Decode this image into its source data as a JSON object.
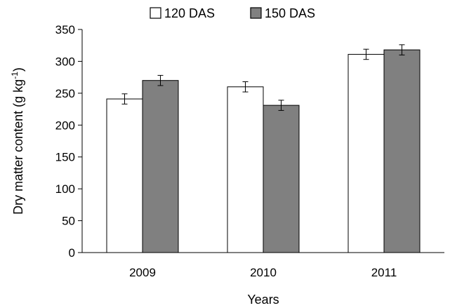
{
  "chart_data": {
    "type": "bar",
    "categories": [
      "2009",
      "2010",
      "2011"
    ],
    "series": [
      {
        "name": "120 DAS",
        "values": [
          241,
          260,
          311
        ],
        "errors": [
          8,
          8,
          8
        ],
        "color": "#ffffff"
      },
      {
        "name": "150 DAS",
        "values": [
          270,
          231,
          318
        ],
        "errors": [
          8,
          8,
          8
        ],
        "color": "#808080"
      }
    ],
    "xlabel": "Years",
    "ylabel": "Dry matter content (g kg",
    "ylabel_sup": "-1",
    "ylabel_close": ")",
    "ylim": [
      0,
      350
    ],
    "yticks": [
      0,
      50,
      100,
      150,
      200,
      250,
      300,
      350
    ],
    "grid": false,
    "legend_position": "top"
  }
}
